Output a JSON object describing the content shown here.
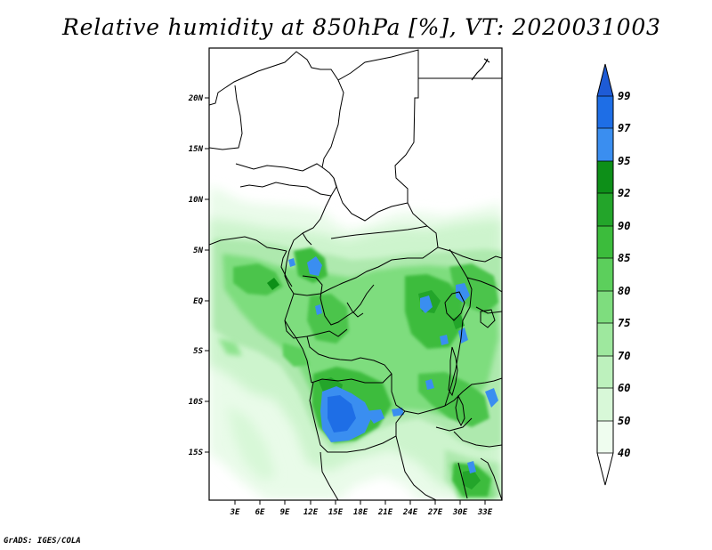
{
  "title": "Relative humidity at 850hPa [%], VT: 2020031003",
  "footer": "GrADS: IGES/COLA",
  "map": {
    "lat_labels": [
      "20N",
      "15N",
      "10N",
      "5N",
      "EQ",
      "5S",
      "10S",
      "15S"
    ],
    "lon_labels": [
      "3E",
      "6E",
      "9E",
      "12E",
      "15E",
      "18E",
      "21E",
      "24E",
      "27E",
      "30E",
      "33E"
    ]
  },
  "colorbar": {
    "labels": [
      "99",
      "97",
      "95",
      "92",
      "90",
      "85",
      "80",
      "75",
      "70",
      "60",
      "50",
      "40"
    ],
    "colors": [
      "#1e5bd6",
      "#1e6ee6",
      "#3a8ef0",
      "#0d8f18",
      "#23a52a",
      "#3cbc3c",
      "#5ccf5c",
      "#7edd7e",
      "#9ee89e",
      "#bdf1bd",
      "#d8f8d8",
      "#effdef"
    ]
  }
}
